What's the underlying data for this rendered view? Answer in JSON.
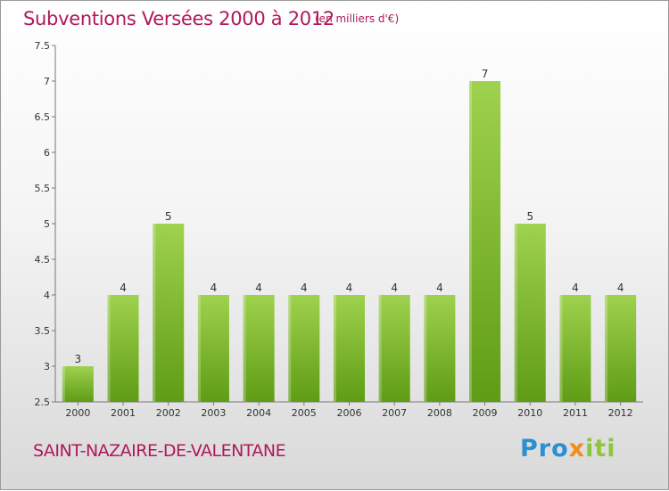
{
  "header": {
    "title": "Subventions Versées 2000 à 2012",
    "unit": "(en milliers d'€)"
  },
  "footer": {
    "commune": "SAINT-NAZAIRE-DE-VALENTANE",
    "logo": "Proxiti"
  },
  "colors": {
    "title": "#b0185a",
    "bar_light": "#9fd24e",
    "bar_dark": "#5f9c15"
  },
  "chart_data": {
    "type": "bar",
    "title": "Subventions Versées 2000 à 2012",
    "subtitle": "(en milliers d'€)",
    "xlabel": "",
    "ylabel": "",
    "categories": [
      "2000",
      "2001",
      "2002",
      "2003",
      "2004",
      "2005",
      "2006",
      "2007",
      "2008",
      "2009",
      "2010",
      "2011",
      "2012"
    ],
    "values": [
      3,
      4,
      5,
      4,
      4,
      4,
      4,
      4,
      4,
      7,
      5,
      4,
      4
    ],
    "data_labels": [
      "3",
      "4",
      "5",
      "4",
      "4",
      "4",
      "4",
      "4",
      "4",
      "7",
      "5",
      "4",
      "4"
    ],
    "ylim": [
      2.5,
      7.5
    ],
    "yticks": [
      "2.5",
      "3",
      "3.5",
      "4",
      "4.5",
      "5",
      "5.5",
      "6",
      "6.5",
      "7",
      "7.5"
    ],
    "grid": false,
    "legend": "none"
  }
}
